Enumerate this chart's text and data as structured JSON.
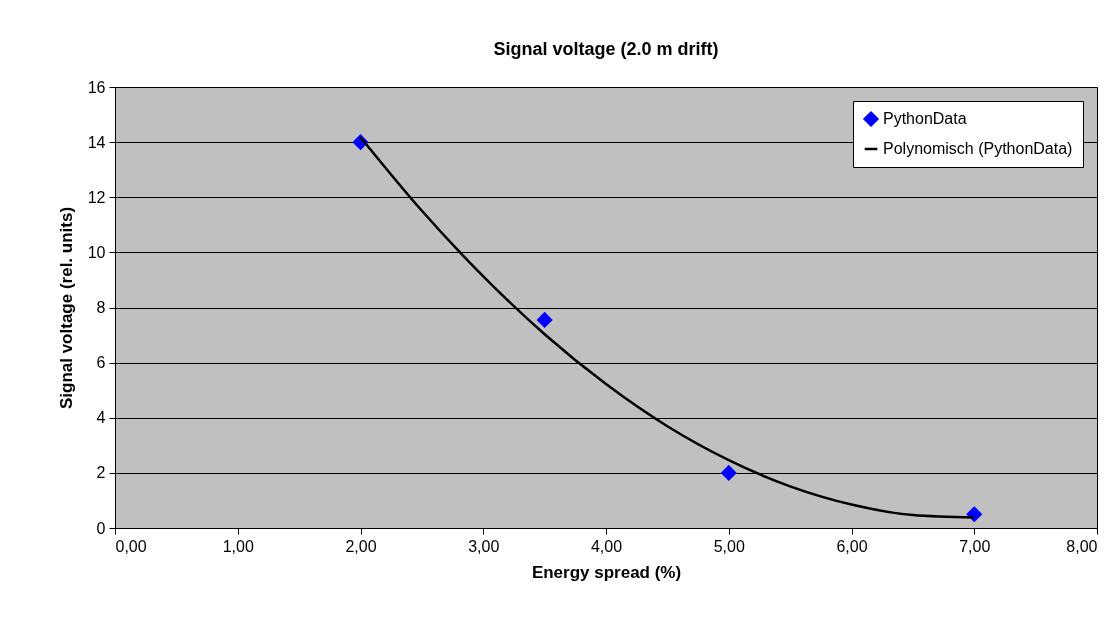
{
  "chart_data": {
    "type": "scatter",
    "title": "Signal voltage (2.0 m drift)",
    "xlabel": "Energy spread (%)",
    "ylabel": "Signal voltage (rel. units)",
    "xlim": [
      0,
      8
    ],
    "xticks": [
      {
        "value": 0,
        "label": "0,00"
      },
      {
        "value": 1,
        "label": "1,00"
      },
      {
        "value": 2,
        "label": "2,00"
      },
      {
        "value": 3,
        "label": "3,00"
      },
      {
        "value": 4,
        "label": "4,00"
      },
      {
        "value": 5,
        "label": "5,00"
      },
      {
        "value": 6,
        "label": "6,00"
      },
      {
        "value": 7,
        "label": "7,00"
      },
      {
        "value": 8,
        "label": "8,00"
      }
    ],
    "ylim": [
      0,
      16
    ],
    "yticks": [
      0,
      2,
      4,
      6,
      8,
      10,
      12,
      14,
      16
    ],
    "grid": "y",
    "legend": "top right",
    "series": [
      {
        "name": "PythonData",
        "marker": "diamond",
        "color": "#0000ff",
        "x": [
          2,
          3.5,
          5,
          7
        ],
        "values": [
          14,
          7.55,
          2,
          0.5
        ]
      },
      {
        "name": "Polynomisch (PythonData)",
        "type": "line",
        "marker": "none",
        "color": "#000000",
        "x": [
          2,
          2.5,
          3,
          3.5,
          4,
          4.5,
          5,
          5.5,
          6,
          6.5,
          7
        ],
        "values": [
          14.18,
          11.51,
          9.13,
          7.03,
          5.22,
          3.69,
          2.46,
          1.51,
          0.85,
          0.47,
          0.38
        ]
      }
    ]
  }
}
